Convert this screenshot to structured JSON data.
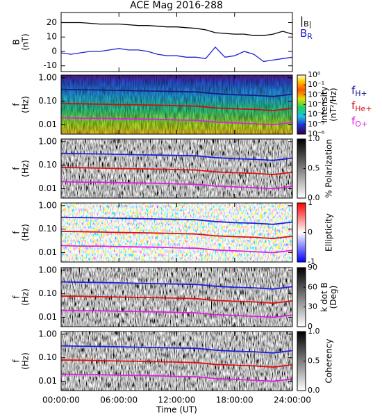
{
  "chart_data": [
    {
      "type": "line",
      "title": "ACE Mag 2016-288",
      "ylabel": [
        "B",
        "(nT)"
      ],
      "ylim": [
        -14,
        27
      ],
      "yticks": [
        -10,
        0,
        10,
        20
      ],
      "legend": true,
      "x": [
        0,
        1,
        2,
        3,
        4,
        5,
        6,
        7,
        8,
        9,
        10,
        11,
        12,
        13,
        14,
        15,
        16,
        17,
        18,
        19,
        20,
        21,
        22,
        23,
        24
      ],
      "series": [
        {
          "name": "|B|",
          "color": "#000000",
          "values": [
            20,
            20,
            20,
            19.5,
            19,
            19,
            19,
            18.5,
            18,
            18,
            17.5,
            17,
            17,
            16.5,
            16,
            15,
            13,
            12.5,
            12,
            12,
            11,
            11,
            12,
            14,
            12
          ]
        },
        {
          "name": "BR",
          "color": "#1f1fd0",
          "values": [
            -1,
            -2,
            -1,
            0,
            0,
            1,
            2,
            1,
            1,
            0,
            -2,
            -3,
            -3,
            -4,
            -4,
            -5,
            3,
            -4,
            -3,
            0,
            -2,
            -7,
            -6,
            -5,
            -4
          ]
        }
      ]
    },
    {
      "type": "spectrogram",
      "colormap": "rainbow",
      "ylabel": [
        "f",
        "(Hz)"
      ],
      "ylog": true,
      "ylim": [
        0.004,
        1.3
      ],
      "yticks": [
        {
          "value": 1,
          "label": "1.00"
        },
        {
          "value": 0.1,
          "label": "0.10"
        },
        {
          "value": 0.01,
          "label": "0.01"
        }
      ],
      "cbar_label": [
        "Intensity",
        "(nT²/Hz)"
      ],
      "cbar_log": true,
      "cbar_lim": [
        1e-06,
        1
      ],
      "cbar_ticks": [
        {
          "value": 1,
          "label": "10⁰"
        },
        {
          "value": 0.1,
          "label": "10⁻¹"
        },
        {
          "value": 0.01,
          "label": "10⁻²"
        },
        {
          "value": 0.001,
          "label": "10⁻³"
        },
        {
          "value": 0.0001,
          "label": "10⁻⁴"
        },
        {
          "value": 1e-05,
          "label": "10⁻⁵"
        },
        {
          "value": 1e-06,
          "label": "10⁻⁶"
        }
      ],
      "legend": true,
      "x": [
        0,
        2,
        4,
        6,
        8,
        10,
        12,
        14,
        16,
        18,
        20,
        22,
        24
      ],
      "series": [
        {
          "name": "fH+",
          "color": "#1a1a8c",
          "values": [
            0.32,
            0.31,
            0.3,
            0.29,
            0.28,
            0.27,
            0.26,
            0.25,
            0.21,
            0.19,
            0.18,
            0.16,
            0.2
          ]
        },
        {
          "name": "fHe+",
          "color": "#cc1010",
          "values": [
            0.08,
            0.078,
            0.075,
            0.072,
            0.07,
            0.068,
            0.065,
            0.062,
            0.052,
            0.048,
            0.045,
            0.04,
            0.05
          ]
        },
        {
          "name": "fO+",
          "color": "#e020e0",
          "values": [
            0.02,
            0.019,
            0.019,
            0.018,
            0.0175,
            0.017,
            0.016,
            0.0155,
            0.013,
            0.012,
            0.011,
            0.01,
            0.0125
          ]
        }
      ]
    },
    {
      "type": "spectrogram",
      "colormap": "gray",
      "ylabel": [
        "f",
        "(Hz)"
      ],
      "ylog": true,
      "ylim": [
        0.004,
        1.3
      ],
      "yticks": [
        {
          "value": 1,
          "label": "1.00"
        },
        {
          "value": 0.1,
          "label": "0.10"
        },
        {
          "value": 0.01,
          "label": "0.01"
        }
      ],
      "cbar_label": [
        "% Polarization"
      ],
      "cbar_lim": [
        0,
        1
      ],
      "cbar_ticks": [
        {
          "value": 0,
          "label": "0.0"
        },
        {
          "value": 0.5,
          "label": "0.5"
        },
        {
          "value": 1,
          "label": "1.0"
        }
      ],
      "x": [
        0,
        2,
        4,
        6,
        8,
        10,
        12,
        14,
        16,
        18,
        20,
        22,
        24
      ],
      "series": [
        {
          "color": "#1f1fe0",
          "values": [
            0.32,
            0.31,
            0.3,
            0.29,
            0.28,
            0.27,
            0.26,
            0.25,
            0.21,
            0.19,
            0.18,
            0.16,
            0.2
          ]
        },
        {
          "color": "#e01010",
          "values": [
            0.08,
            0.078,
            0.075,
            0.072,
            0.07,
            0.068,
            0.065,
            0.062,
            0.052,
            0.048,
            0.045,
            0.04,
            0.05
          ]
        },
        {
          "color": "#e020e0",
          "values": [
            0.02,
            0.019,
            0.019,
            0.018,
            0.0175,
            0.017,
            0.016,
            0.0155,
            0.013,
            0.012,
            0.011,
            0.01,
            0.0125
          ]
        }
      ]
    },
    {
      "type": "spectrogram",
      "colormap": "bwr",
      "ylabel": [
        "f",
        "(Hz)"
      ],
      "ylog": true,
      "ylim": [
        0.004,
        1.3
      ],
      "yticks": [
        {
          "value": 1,
          "label": "1.00"
        },
        {
          "value": 0.1,
          "label": "0.10"
        },
        {
          "value": 0.01,
          "label": "0.01"
        }
      ],
      "cbar_label": [
        "Ellipticity"
      ],
      "cbar_lim": [
        -1,
        1
      ],
      "cbar_ticks": [
        -1,
        0,
        1
      ],
      "x": [
        0,
        2,
        4,
        6,
        8,
        10,
        12,
        14,
        16,
        18,
        20,
        22,
        24
      ],
      "series": [
        {
          "color": "#1f1fe0",
          "values": [
            0.32,
            0.31,
            0.3,
            0.29,
            0.28,
            0.27,
            0.26,
            0.25,
            0.21,
            0.19,
            0.18,
            0.16,
            0.2
          ]
        },
        {
          "color": "#e01010",
          "values": [
            0.08,
            0.078,
            0.075,
            0.072,
            0.07,
            0.068,
            0.065,
            0.062,
            0.052,
            0.048,
            0.045,
            0.04,
            0.05
          ]
        },
        {
          "color": "#e020e0",
          "values": [
            0.02,
            0.019,
            0.019,
            0.018,
            0.0175,
            0.017,
            0.016,
            0.0155,
            0.013,
            0.012,
            0.011,
            0.01,
            0.0125
          ]
        }
      ]
    },
    {
      "type": "spectrogram",
      "colormap": "gray",
      "ylabel": [
        "f",
        "(Hz)"
      ],
      "ylog": true,
      "ylim": [
        0.004,
        1.3
      ],
      "yticks": [
        {
          "value": 1,
          "label": "1.00"
        },
        {
          "value": 0.1,
          "label": "0.10"
        },
        {
          "value": 0.01,
          "label": "0.01"
        }
      ],
      "cbar_label": [
        "k dot B",
        "(Deg)"
      ],
      "cbar_lim": [
        0,
        90
      ],
      "cbar_ticks": [
        0,
        30,
        60,
        90
      ],
      "x": [
        0,
        2,
        4,
        6,
        8,
        10,
        12,
        14,
        16,
        18,
        20,
        22,
        24
      ],
      "series": [
        {
          "color": "#1f1fe0",
          "values": [
            0.32,
            0.31,
            0.3,
            0.29,
            0.28,
            0.27,
            0.26,
            0.25,
            0.21,
            0.19,
            0.18,
            0.16,
            0.2
          ]
        },
        {
          "color": "#e01010",
          "values": [
            0.08,
            0.078,
            0.075,
            0.072,
            0.07,
            0.068,
            0.065,
            0.062,
            0.052,
            0.048,
            0.045,
            0.04,
            0.05
          ]
        },
        {
          "color": "#e020e0",
          "values": [
            0.02,
            0.019,
            0.019,
            0.018,
            0.0175,
            0.017,
            0.016,
            0.0155,
            0.013,
            0.012,
            0.011,
            0.01,
            0.0125
          ]
        }
      ]
    },
    {
      "type": "spectrogram",
      "colormap": "gray",
      "ylabel": [
        "f",
        "(Hz)"
      ],
      "ylog": true,
      "ylim": [
        0.004,
        1.3
      ],
      "yticks": [
        {
          "value": 1,
          "label": "1.00"
        },
        {
          "value": 0.1,
          "label": "0.10"
        },
        {
          "value": 0.01,
          "label": "0.01"
        }
      ],
      "cbar_label": [
        "Coherency"
      ],
      "cbar_lim": [
        0,
        1
      ],
      "cbar_ticks": [
        {
          "value": 0,
          "label": "0.0"
        },
        {
          "value": 0.5,
          "label": "0.5"
        },
        {
          "value": 1,
          "label": "1.0"
        }
      ],
      "x": [
        0,
        2,
        4,
        6,
        8,
        10,
        12,
        14,
        16,
        18,
        20,
        22,
        24
      ],
      "series": [
        {
          "color": "#1f1fe0",
          "values": [
            0.32,
            0.31,
            0.3,
            0.29,
            0.28,
            0.27,
            0.26,
            0.25,
            0.21,
            0.19,
            0.18,
            0.16,
            0.2
          ]
        },
        {
          "color": "#e01010",
          "values": [
            0.08,
            0.078,
            0.075,
            0.072,
            0.07,
            0.068,
            0.065,
            0.062,
            0.052,
            0.048,
            0.045,
            0.04,
            0.05
          ]
        },
        {
          "color": "#e020e0",
          "values": [
            0.02,
            0.019,
            0.019,
            0.018,
            0.0175,
            0.017,
            0.016,
            0.0155,
            0.013,
            0.012,
            0.011,
            0.01,
            0.0125
          ]
        }
      ],
      "xlim": [
        0,
        24
      ],
      "xlabel": "Time (UT)",
      "xticks": [
        {
          "value": 0,
          "label": "00:00:00"
        },
        {
          "value": 6,
          "label": "06:00:00"
        },
        {
          "value": 12,
          "label": "12:00:00"
        },
        {
          "value": 18,
          "label": "18:00:00"
        },
        {
          "value": 24,
          "label": "24:00:00"
        }
      ]
    }
  ]
}
